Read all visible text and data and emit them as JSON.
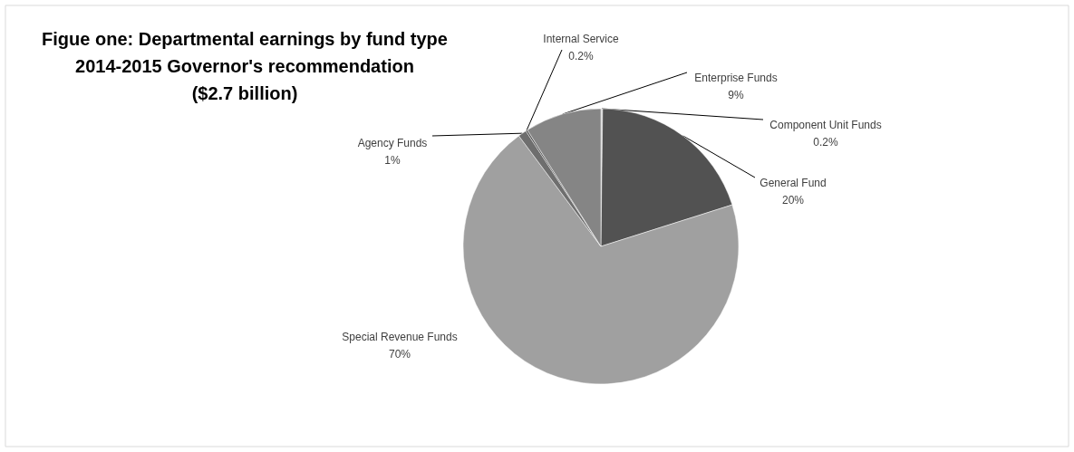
{
  "chart_data": {
    "type": "pie",
    "title": "Figue one:  Departmental earnings by fund type\n2014-2015 Governor's recommendation\n($2.7 billion)",
    "categories": [
      "Component Unit Funds",
      "General Fund",
      "Special Revenue Funds",
      "Agency Funds",
      "Internal Service",
      "Enterprise Funds"
    ],
    "values": [
      0.2,
      20,
      70,
      1,
      0.2,
      9
    ],
    "value_labels": [
      "0.2%",
      "20%",
      "70%",
      "1%",
      "0.2%",
      "9%"
    ],
    "colors": [
      "#c8c8c8",
      "#525252",
      "#a0a0a0",
      "#6e6e6e",
      "#4a4a4a",
      "#858585"
    ]
  }
}
